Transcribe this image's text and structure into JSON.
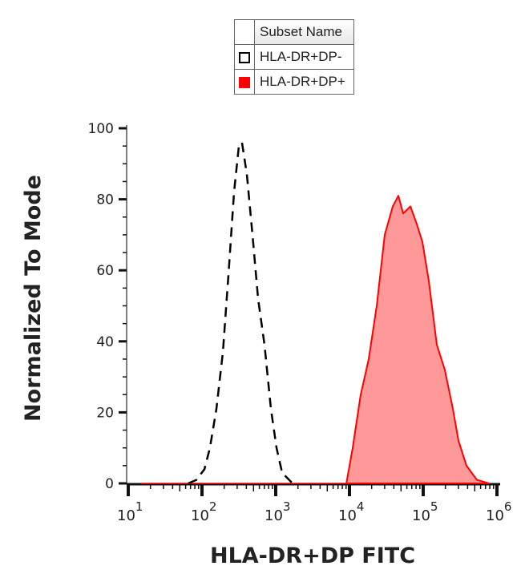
{
  "legend": {
    "header": "Subset Name",
    "entries": [
      {
        "label": "HLA-DR+DP-",
        "style": "outline",
        "color": "#000000"
      },
      {
        "label": "HLA-DR+DP+",
        "style": "filled",
        "color": "#ff0000"
      }
    ]
  },
  "chart_data": {
    "type": "area",
    "xlabel": "HLA-DR+DP FITC",
    "ylabel": "Normalized To Mode",
    "xscale": "log",
    "xlim": [
      10,
      1000000
    ],
    "ylim": [
      0,
      100
    ],
    "xticks": [
      {
        "base": "10",
        "exp": "1"
      },
      {
        "base": "10",
        "exp": "2"
      },
      {
        "base": "10",
        "exp": "3"
      },
      {
        "base": "10",
        "exp": "4"
      },
      {
        "base": "10",
        "exp": "5"
      },
      {
        "base": "10",
        "exp": "6"
      }
    ],
    "yticks": [
      "0",
      "20",
      "40",
      "60",
      "80",
      "100"
    ],
    "legend_position": "top",
    "series": [
      {
        "name": "HLA-DR+DP-",
        "style": "dashed-line",
        "color": "#000000",
        "x": [
          65,
          84,
          108,
          128,
          157,
          192,
          229,
          272,
          316,
          349,
          406,
          484,
          577,
          705,
          861,
          1026,
          1222,
          1690
        ],
        "y": [
          0,
          1,
          4,
          10,
          21,
          37,
          59,
          82,
          95,
          96,
          87,
          70,
          52,
          39,
          21,
          10,
          3,
          0
        ]
      },
      {
        "name": "HLA-DR+DP+",
        "style": "filled",
        "color": "#ff0000",
        "fill": "#ff9999",
        "x": [
          9060,
          11040,
          14190,
          18230,
          23440,
          30060,
          38650,
          46030,
          53460,
          66990,
          81850,
          97500,
          119100,
          153100,
          196300,
          252200,
          300600,
          386500,
          534600,
          778000
        ],
        "y": [
          0,
          10,
          25,
          35,
          50,
          70,
          78,
          81,
          76,
          78,
          73,
          68,
          57,
          39,
          32,
          21,
          12,
          5,
          1,
          0
        ]
      }
    ]
  }
}
